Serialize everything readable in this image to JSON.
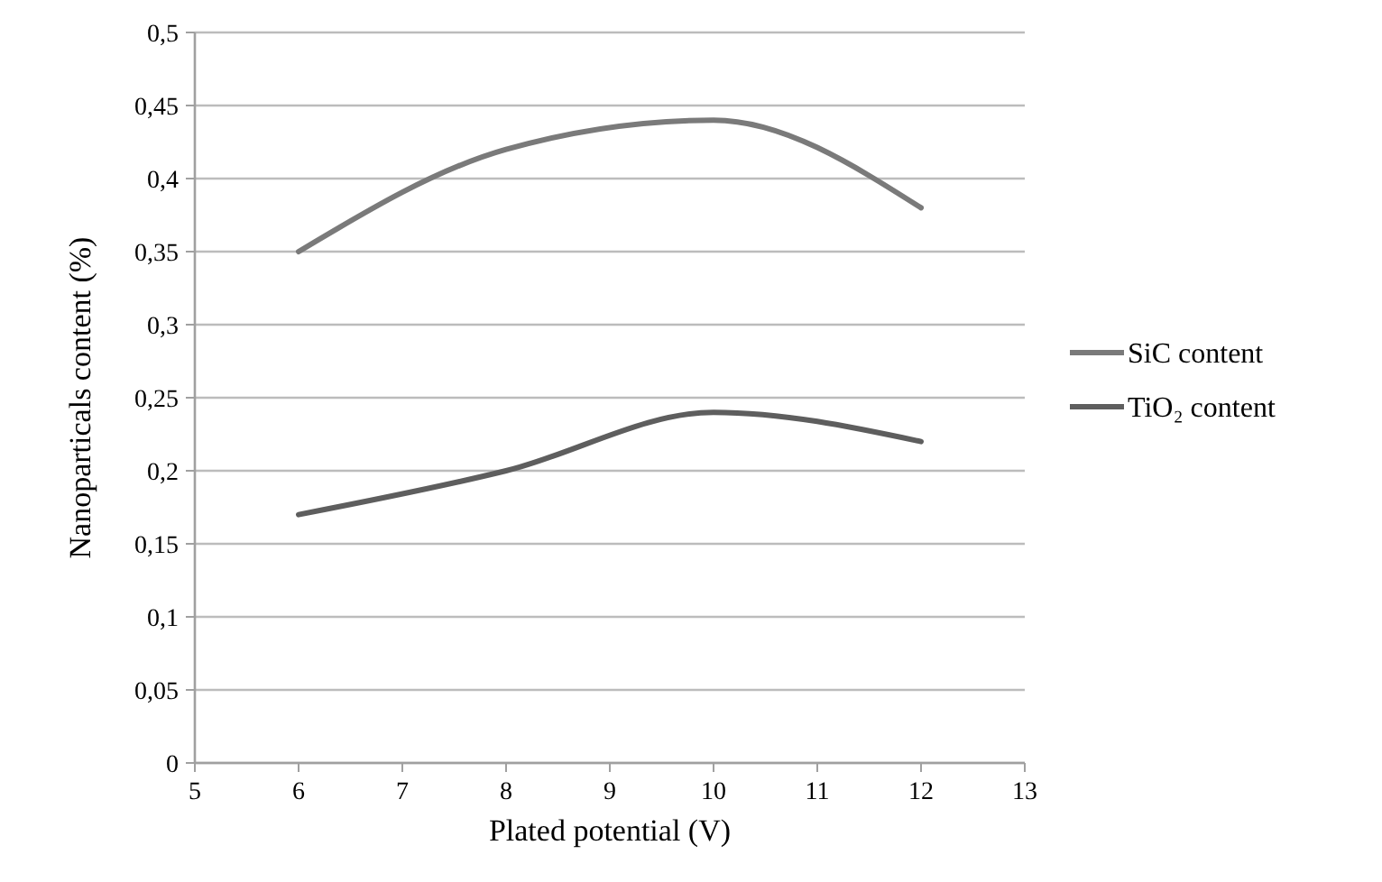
{
  "chart_data": {
    "type": "line",
    "xlabel": "Plated potential  (V)",
    "ylabel": "Nanoparticals content (%)",
    "x": [
      6,
      8,
      10,
      12
    ],
    "series": [
      {
        "name": "SiC content",
        "color": "#7a7a7a",
        "values": [
          0.35,
          0.42,
          0.44,
          0.38
        ]
      },
      {
        "name": "TiO₂ content",
        "color": "#5e5e5e",
        "values": [
          0.17,
          0.2,
          0.24,
          0.22
        ]
      }
    ],
    "xlim": [
      5,
      13
    ],
    "xticks": [
      5,
      6,
      7,
      8,
      9,
      10,
      11,
      12,
      13
    ],
    "ylim": [
      0,
      0.5
    ],
    "yticks": [
      0,
      {
        "value": 0.05,
        "label": "0,05"
      },
      {
        "value": 0.1,
        "label": "0,1"
      },
      {
        "value": 0.15,
        "label": "0,15"
      },
      {
        "value": 0.2,
        "label": "0,2"
      },
      {
        "value": 0.25,
        "label": "0,25"
      },
      {
        "value": 0.3,
        "label": "0,3"
      },
      {
        "value": 0.35,
        "label": "0,35"
      },
      {
        "value": 0.4,
        "label": "0,4"
      },
      {
        "value": 0.45,
        "label": "0,45"
      },
      {
        "value": 0.5,
        "label": "0,5"
      }
    ],
    "grid": "y",
    "legend": "right",
    "line_style": "solid",
    "marker": "none"
  }
}
